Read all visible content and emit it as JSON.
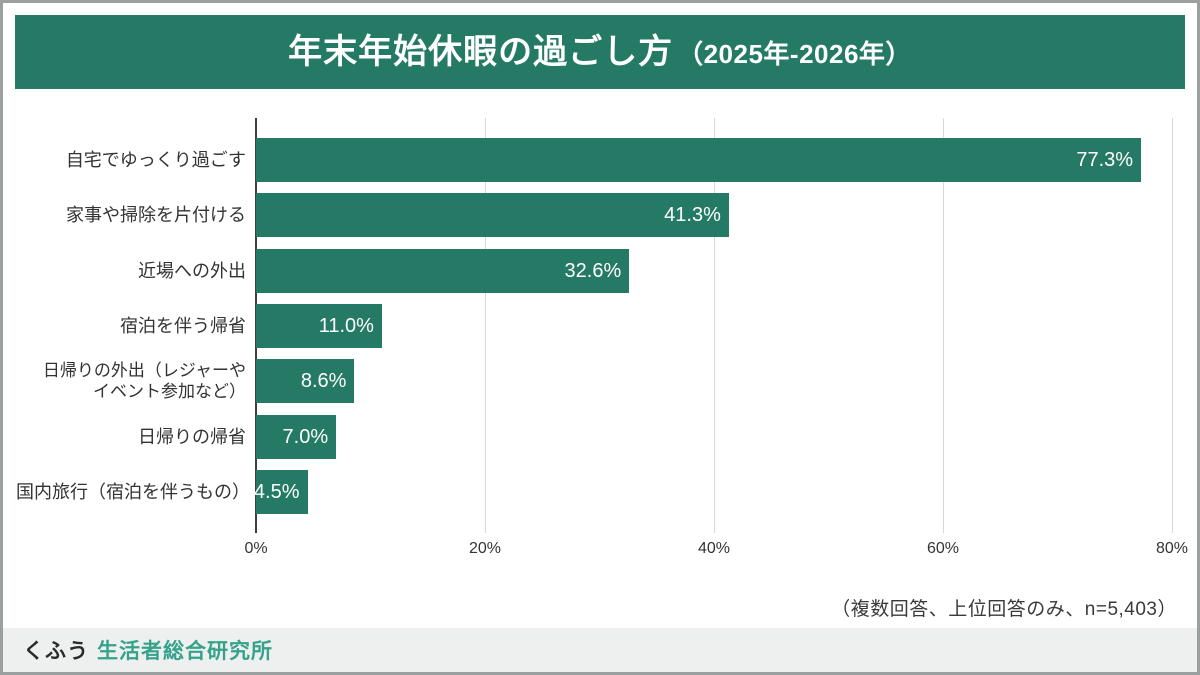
{
  "header": {
    "title_main": "年末年始休暇の過ごし方",
    "title_paren": "（2025年-2026年）"
  },
  "chart_data": {
    "type": "bar",
    "orientation": "horizontal",
    "title": "年末年始休暇の過ごし方（2025年-2026年）",
    "categories": [
      "自宅でゆっくり過ごす",
      "家事や掃除を片付ける",
      "近場への外出",
      "宿泊を伴う帰省",
      "日帰りの外出（レジャーやイベント参加など）",
      "日帰りの帰省",
      "国内旅行（宿泊を伴うもの）"
    ],
    "values": [
      77.3,
      41.3,
      32.6,
      11.0,
      8.6,
      7.0,
      4.5
    ],
    "value_labels": [
      "77.3%",
      "41.3%",
      "32.6%",
      "11.0%",
      "8.6%",
      "7.0%",
      "4.5%"
    ],
    "label_lines": {
      "4": [
        "日帰りの外出（レジャーや",
        "イベント参加など）"
      ]
    },
    "x_ticks": [
      "0%",
      "20%",
      "40%",
      "60%",
      "80%"
    ],
    "xlim": [
      0,
      80
    ],
    "grid": true,
    "legend": false
  },
  "note": "（複数回答、上位回答のみ、n=5,403）",
  "footer": {
    "brand": "くふう",
    "org": "生活者総合研究所"
  },
  "colors": {
    "header_bg": "#247a65",
    "bar": "#247a65",
    "gridline": "#d8d8d8",
    "axis": "#3e3e3e",
    "footer_bg": "#edf0ee",
    "org_text": "#36a28c"
  }
}
